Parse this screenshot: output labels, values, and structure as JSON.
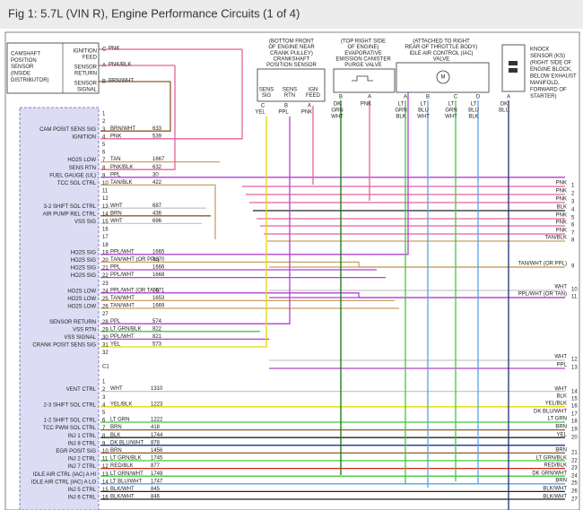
{
  "header": {
    "title": "Fig 1: 5.7L (VIN R), Engine Performance Circuits (1 of 4)"
  },
  "cam_sensor": {
    "label_lines": [
      "CAMSHAFT",
      "POSITION",
      "SENSOR",
      "(INSIDE",
      "DISTRIBUTOR)"
    ],
    "pins": [
      {
        "func": [
          "IGNITION",
          "FEED"
        ],
        "pin": "C",
        "wire": "PNK"
      },
      {
        "func": [
          "SENSOR",
          "RETURN"
        ],
        "pin": "A",
        "wire": "PNK/BLK"
      },
      {
        "func": [
          "SENSOR",
          "SIGNAL"
        ],
        "pin": "B",
        "wire": "BRN/WHT"
      }
    ]
  },
  "crank_sensor": {
    "caption": [
      "(BOTTOM FRONT",
      "OF ENGINE NEAR",
      "CRANK PULLEY)",
      "CRANKSHAFT",
      "POSITION SENSOR"
    ],
    "pins": [
      {
        "func": [
          "SENS",
          "SIG"
        ],
        "pin": "C",
        "wire": [
          "YEL"
        ]
      },
      {
        "func": [
          "SENS",
          "RTN"
        ],
        "pin": "B",
        "wire": [
          "PPL"
        ]
      },
      {
        "func": [
          "IGN",
          "FEED"
        ],
        "pin": "A",
        "wire": [
          "PNK"
        ]
      }
    ]
  },
  "evap_valve": {
    "caption": [
      "(TOP RIGHT SIDE",
      "OF ENGINE)",
      "EVAPORATIVE",
      "EMISSION CANISTER",
      "PURGE VALVE"
    ],
    "pins": [
      {
        "pin": "B",
        "wire": [
          "DK",
          "GRN",
          "WHT"
        ]
      },
      {
        "pin": "A",
        "wire": [
          "PNK"
        ]
      }
    ]
  },
  "iac_valve": {
    "caption": [
      "(ATTACHED TO RIGHT",
      "REAR OF THROTTLE BODY)",
      "IDLE AIR CONTROL (IAC)",
      "VALVE"
    ],
    "symbol": "M",
    "pins": [
      {
        "pin": "A",
        "wire": [
          "LT",
          "GRN",
          "BLK"
        ]
      },
      {
        "pin": "B",
        "wire": [
          "LT",
          "BLU",
          "WHT"
        ]
      },
      {
        "pin": "C",
        "wire": [
          "LT",
          "GRN",
          "WHT"
        ]
      },
      {
        "pin": "D",
        "wire": [
          "LT",
          "BLU",
          "BLK"
        ]
      }
    ]
  },
  "knock_sensor": {
    "caption": [
      "KNOCK",
      "SENSOR (KS)",
      "(RIGHT SIDE OF",
      "ENGINE BLOCK,",
      "BELOW EXHAUST",
      "MANIFOLD,",
      "FORWARD OF",
      "STARTER)"
    ],
    "pins": [
      {
        "pin": "A",
        "wire": [
          "DK",
          "BLU"
        ]
      }
    ]
  },
  "pcm": {
    "connector_label": "C1",
    "upper": [
      {
        "pin": 1
      },
      {
        "pin": 2
      },
      {
        "pin": 3,
        "func": "CAM POSIT SENS SIG",
        "wire": "BRN/WHT",
        "circuit": "633"
      },
      {
        "pin": 4,
        "func": "IGNITION",
        "wire": "PNK",
        "circuit": "539"
      },
      {
        "pin": 5
      },
      {
        "pin": 6
      },
      {
        "pin": 7,
        "func": "HO2S LOW",
        "wire": "TAN",
        "circuit": "1667"
      },
      {
        "pin": 8,
        "func": "SENS RTN",
        "wire": "PNK/BLK",
        "circuit": "632"
      },
      {
        "pin": 9,
        "func": "FUEL GAUGE (UL)",
        "wire": "PPL",
        "circuit": "30"
      },
      {
        "pin": 10,
        "func": "TCC SOL CTRL",
        "wire": "TAN/BLK",
        "circuit": "422"
      },
      {
        "pin": 11
      },
      {
        "pin": 12
      },
      {
        "pin": 13,
        "func": "3-2 SHIFT SOL CTRL",
        "wire": "WHT",
        "circuit": "687"
      },
      {
        "pin": 14,
        "func": "AIR PUMP REL CTRL",
        "wire": "BRN",
        "circuit": "436"
      },
      {
        "pin": 15,
        "func": "VSS SIG",
        "wire": "WHT",
        "circuit": "696"
      },
      {
        "pin": 16
      },
      {
        "pin": 17
      },
      {
        "pin": 18
      },
      {
        "pin": 19,
        "func": "HO2S SIG",
        "wire": "PPL/WHT",
        "circuit": "1665"
      },
      {
        "pin": 20,
        "func": "HO2S SIG",
        "wire": "TAN/WHT (OR PPL)",
        "circuit": "1670"
      },
      {
        "pin": 21,
        "func": "HO2S SIG",
        "wire": "PPL",
        "circuit": "1666"
      },
      {
        "pin": 22,
        "func": "HO2S SIG",
        "wire": "PPL/WHT",
        "circuit": "1668"
      },
      {
        "pin": 23
      },
      {
        "pin": 24,
        "func": "HO2S LOW",
        "wire": "PPL/WHT (OR TAN)",
        "circuit": "1671"
      },
      {
        "pin": 25,
        "func": "HO2S LOW",
        "wire": "TAN/WHT",
        "circuit": "1653"
      },
      {
        "pin": 26,
        "func": "HO2S LOW",
        "wire": "TAN/WHT",
        "circuit": "1669"
      },
      {
        "pin": 27
      },
      {
        "pin": 28,
        "func": "SENSOR RETURN",
        "wire": "PPL",
        "circuit": "574"
      },
      {
        "pin": 29,
        "func": "VSS RTN",
        "wire": "LT GRN/BLK",
        "circuit": "822"
      },
      {
        "pin": 30,
        "func": "VSS SIGNAL",
        "wire": "PPL/WHT",
        "circuit": "821"
      },
      {
        "pin": 31,
        "func": "CRANK POSIT SENS SIG",
        "wire": "YEL",
        "circuit": "573"
      },
      {
        "pin": 32
      }
    ],
    "lower": [
      {
        "pin": 1
      },
      {
        "pin": 2,
        "func": "VENT CTRL",
        "wire": "WHT",
        "circuit": "1310"
      },
      {
        "pin": 3
      },
      {
        "pin": 4,
        "func": "2-3 SHIFT SOL CTRL",
        "wire": "YEL/BLK",
        "circuit": "1223"
      },
      {
        "pin": 5
      },
      {
        "pin": 6,
        "func": "1-2 SHIFT SOL CTRL",
        "wire": "LT GRN",
        "circuit": "1222"
      },
      {
        "pin": 7,
        "func": "TCC PWM SOL CTRL",
        "wire": "BRN",
        "circuit": "418"
      },
      {
        "pin": 8,
        "func": "INJ 1 CTRL",
        "wire": "BLK",
        "circuit": "1744"
      },
      {
        "pin": 9,
        "func": "INJ 8 CTRL",
        "wire": "DK BLU/WHT",
        "circuit": "878"
      },
      {
        "pin": 10,
        "func": "EGR POSIT SIG",
        "wire": "BRN",
        "circuit": "1456"
      },
      {
        "pin": 11,
        "func": "INJ 2 CTRL",
        "wire": "LT GRN/BLK",
        "circuit": "1745"
      },
      {
        "pin": 12,
        "func": "INJ 7 CTRL",
        "wire": "RED/BLK",
        "circuit": "877"
      },
      {
        "pin": 13,
        "func": "IDLE AIR CTRL (IAC) A HI",
        "wire": "LT GRN/WHT",
        "circuit": "1749"
      },
      {
        "pin": 14,
        "func": "IDLE AIR CTRL (IAC) A LO",
        "wire": "LT BLU/WHT",
        "circuit": "1747"
      },
      {
        "pin": 15,
        "func": "INJ 5 CTRL",
        "wire": "BLK/WHT",
        "circuit": "845"
      },
      {
        "pin": 16,
        "func": "INJ 6 CTRL",
        "wire": "BLK/WHT",
        "circuit": "846"
      }
    ]
  },
  "harness": [
    {
      "wire": "PNK",
      "pin": 1
    },
    {
      "wire": "PNK",
      "pin": 2
    },
    {
      "wire": "PNK",
      "pin": 3
    },
    {
      "wire": "BLK",
      "pin": 4
    },
    {
      "wire": "PNK",
      "pin": 5
    },
    {
      "wire": "PNK",
      "pin": 6
    },
    {
      "wire": "PNK",
      "pin": 7
    },
    {
      "wire": "TAN/BLK",
      "pin": 8
    },
    {
      "wire": "TAN/WHT (OR PPL)",
      "pin": 9
    },
    {
      "wire": "WHT",
      "pin": 10
    },
    {
      "wire": "PPL/WHT (OR TAN)",
      "pin": 11
    },
    {
      "wire": "WHT",
      "pin": 12
    },
    {
      "wire": "PPL",
      "pin": 13
    },
    {
      "wire": "WHT",
      "pin": 14
    },
    {
      "wire": "BLK",
      "pin": 15
    },
    {
      "wire": "YEL/BLK",
      "pin": 16
    },
    {
      "wire": "DK BLU/WHT",
      "pin": 17
    },
    {
      "wire": "LT GRN",
      "pin": 18
    },
    {
      "wire": "BRN",
      "pin": 19
    },
    {
      "wire": "YEL",
      "pin": 20
    },
    {
      "wire": "BRN",
      "pin": 21
    },
    {
      "wire": "LT GRN/BLK",
      "pin": 22
    },
    {
      "wire": "RED/BLK",
      "pin": 23
    },
    {
      "wire": "DK GRN/WHT",
      "pin": 24
    },
    {
      "wire": "BRN",
      "pin": 25
    },
    {
      "wire": "BLK/WHT",
      "pin": 26
    },
    {
      "wire": "BLK/WHT",
      "pin": 27
    }
  ]
}
